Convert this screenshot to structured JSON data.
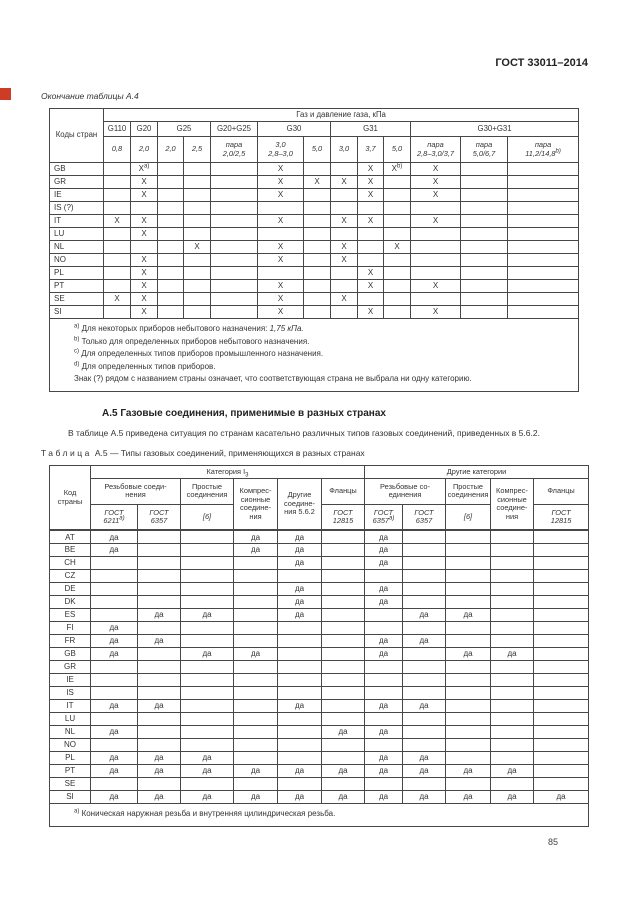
{
  "page": {
    "header_right": "ГОСТ 33011–2014",
    "page_number": "85",
    "marker_color": "#ce3c28"
  },
  "table_a4": {
    "caption": "Окончание таблицы А.4",
    "header": {
      "country_col": "Коды стран",
      "gas_title": "Газ и давление газа, кПа",
      "groups": [
        {
          "label": "G110",
          "span": 1
        },
        {
          "label": "G20",
          "span": 1
        },
        {
          "label": "G25",
          "span": 2
        },
        {
          "label": "G20+G25",
          "span": 1
        },
        {
          "label": "G30",
          "span": 2
        },
        {
          "label": "G31",
          "span": 3
        },
        {
          "label": "G30+G31",
          "span": 3
        }
      ],
      "pressures": [
        "0,8",
        "2,0",
        "2,0",
        "2,5",
        "пара\n2,0/2,5",
        "3,0\n2,8–3,0",
        "5,0",
        "3,0",
        "3,7",
        "5,0",
        "пара\n2,8–3,0/3,7",
        "пара\n5,0/6,7",
        "пара\n11,2/14,8^b)"
      ]
    },
    "rows": [
      {
        "country": "GB",
        "cells": [
          "",
          "X^a)",
          "",
          "",
          "",
          "X",
          "",
          "",
          "X",
          "X^b)",
          "X",
          "",
          ""
        ]
      },
      {
        "country": "GR",
        "cells": [
          "",
          "X",
          "",
          "",
          "",
          "X",
          "X",
          "X",
          "X",
          "",
          "X",
          "",
          ""
        ]
      },
      {
        "country": "IE",
        "cells": [
          "",
          "X",
          "",
          "",
          "",
          "X",
          "",
          "",
          "X",
          "",
          "X",
          "",
          ""
        ]
      },
      {
        "country": "IS (?)",
        "cells": [
          "",
          "",
          "",
          "",
          "",
          "",
          "",
          "",
          "",
          "",
          "",
          "",
          ""
        ]
      },
      {
        "country": "IT",
        "cells": [
          "X",
          "X",
          "",
          "",
          "",
          "X",
          "",
          "X",
          "X",
          "",
          "X",
          "",
          ""
        ]
      },
      {
        "country": "LU",
        "cells": [
          "",
          "X",
          "",
          "",
          "",
          "",
          "",
          "",
          "",
          "",
          "",
          "",
          ""
        ]
      },
      {
        "country": "NL",
        "cells": [
          "",
          "",
          "",
          "X",
          "",
          "X",
          "",
          "X",
          "",
          "X",
          "",
          "",
          ""
        ]
      },
      {
        "country": "NO",
        "cells": [
          "",
          "X",
          "",
          "",
          "",
          "X",
          "",
          "X",
          "",
          "",
          "",
          "",
          ""
        ]
      },
      {
        "country": "PL",
        "cells": [
          "",
          "X",
          "",
          "",
          "",
          "",
          "",
          "",
          "X",
          "",
          "",
          "",
          ""
        ]
      },
      {
        "country": "PT",
        "cells": [
          "",
          "X",
          "",
          "",
          "",
          "X",
          "",
          "",
          "X",
          "",
          "X",
          "",
          ""
        ]
      },
      {
        "country": "SE",
        "cells": [
          "X",
          "X",
          "",
          "",
          "",
          "X",
          "",
          "X",
          "",
          "",
          "",
          "",
          ""
        ]
      },
      {
        "country": "SI",
        "cells": [
          "",
          "X",
          "",
          "",
          "",
          "X",
          "",
          "",
          "X",
          "",
          "X",
          "",
          ""
        ]
      }
    ],
    "footnotes": [
      {
        "sup": "a)",
        "text": "Для некоторых приборов небытового назначения: ",
        "em": "1,75 кПа."
      },
      {
        "sup": "b)",
        "text": "Только для определенных приборов небытового назначения.",
        "em": ""
      },
      {
        "sup": "c)",
        "text": "Для определенных типов приборов промышленного назначения.",
        "em": ""
      },
      {
        "sup": "d)",
        "text": "Для определенных типов приборов.",
        "em": ""
      },
      {
        "sup": "",
        "text": "Знак (?) рядом с названием страны означает, что соответствующая страна не выбрала ни одну категорию.",
        "em": ""
      }
    ]
  },
  "section_a5": {
    "heading": "А.5 Газовые соединения, применимые в разных странах",
    "paragraph": "В таблице А.5 приведена ситуация по странам касательно различных типов газовых соединений, приведенных в 5.6.2."
  },
  "table_a5": {
    "caption_label": "Таблица",
    "caption_text": "А.5 — Типы газовых соединений, применяющихся в разных странах",
    "header": {
      "country_col": "Код\nстраны",
      "cat_label": "Категория I",
      "cat_sub": "3",
      "other_label": "Другие категории",
      "row2": [
        {
          "label": "Резьбовые соеди-\nнения",
          "span": 2,
          "rowspan": 1
        },
        {
          "label": "Простые\nсоединения",
          "span": 1,
          "rowspan": 1
        },
        {
          "label": "Компрес-\nсионные\nсоедине-\nния",
          "span": 1,
          "rowspan": 2
        },
        {
          "label": "Другие\nсоедине-\nния 5.6.2",
          "span": 1,
          "rowspan": 2
        },
        {
          "label": "Фланцы",
          "span": 1,
          "rowspan": 1
        },
        {
          "label": "Резьбовые со-\nединения",
          "span": 2,
          "rowspan": 1
        },
        {
          "label": "Простые\nсоединения",
          "span": 1,
          "rowspan": 1
        },
        {
          "label": "Компрес-\nсионные\nсоедине-\nния",
          "span": 1,
          "rowspan": 2
        },
        {
          "label": "Фланцы",
          "span": 1,
          "rowspan": 1
        }
      ],
      "row3": [
        "ГОСТ\n6211^a)",
        "ГОСТ\n6357",
        "[6]",
        "ГОСТ\n12815",
        "ГОСТ\n6357^a)",
        "ГОСТ\n6357",
        "[6]",
        "ГОСТ\n12815"
      ]
    },
    "rows": [
      {
        "country": "AT",
        "cells": [
          "да",
          "",
          "",
          "да",
          "да",
          "",
          "да",
          "",
          "",
          "",
          ""
        ]
      },
      {
        "country": "BE",
        "cells": [
          "да",
          "",
          "",
          "да",
          "да",
          "",
          "да",
          "",
          "",
          "",
          ""
        ]
      },
      {
        "country": "CH",
        "cells": [
          "",
          "",
          "",
          "",
          "да",
          "",
          "да",
          "",
          "",
          "",
          ""
        ]
      },
      {
        "country": "CZ",
        "cells": [
          "",
          "",
          "",
          "",
          "",
          "",
          "",
          "",
          "",
          "",
          ""
        ]
      },
      {
        "country": "DE",
        "cells": [
          "",
          "",
          "",
          "",
          "да",
          "",
          "да",
          "",
          "",
          "",
          ""
        ]
      },
      {
        "country": "DK",
        "cells": [
          "",
          "",
          "",
          "",
          "да",
          "",
          "да",
          "",
          "",
          "",
          ""
        ]
      },
      {
        "country": "ES",
        "cells": [
          "",
          "да",
          "да",
          "",
          "да",
          "",
          "",
          "да",
          "да",
          "",
          ""
        ]
      },
      {
        "country": "FI",
        "cells": [
          "да",
          "",
          "",
          "",
          "",
          "",
          "",
          "",
          "",
          "",
          ""
        ]
      },
      {
        "country": "FR",
        "cells": [
          "да",
          "да",
          "",
          "",
          "",
          "",
          "да",
          "да",
          "",
          "",
          ""
        ]
      },
      {
        "country": "GB",
        "cells": [
          "да",
          "",
          "да",
          "да",
          "",
          "",
          "да",
          "",
          "да",
          "да",
          ""
        ]
      },
      {
        "country": "GR",
        "cells": [
          "",
          "",
          "",
          "",
          "",
          "",
          "",
          "",
          "",
          "",
          ""
        ]
      },
      {
        "country": "IE",
        "cells": [
          "",
          "",
          "",
          "",
          "",
          "",
          "",
          "",
          "",
          "",
          ""
        ]
      },
      {
        "country": "IS",
        "cells": [
          "",
          "",
          "",
          "",
          "",
          "",
          "",
          "",
          "",
          "",
          ""
        ]
      },
      {
        "country": "IT",
        "cells": [
          "да",
          "да",
          "",
          "",
          "да",
          "",
          "да",
          "да",
          "",
          "",
          ""
        ]
      },
      {
        "country": "LU",
        "cells": [
          "",
          "",
          "",
          "",
          "",
          "",
          "",
          "",
          "",
          "",
          ""
        ]
      },
      {
        "country": "NL",
        "cells": [
          "да",
          "",
          "",
          "",
          "",
          "да",
          "да",
          "",
          "",
          "",
          ""
        ]
      },
      {
        "country": "NO",
        "cells": [
          "",
          "",
          "",
          "",
          "",
          "",
          "",
          "",
          "",
          "",
          ""
        ]
      },
      {
        "country": "PL",
        "cells": [
          "да",
          "да",
          "да",
          "",
          "",
          "",
          "да",
          "да",
          "",
          "",
          ""
        ]
      },
      {
        "country": "PT",
        "cells": [
          "да",
          "да",
          "да",
          "да",
          "да",
          "да",
          "да",
          "да",
          "да",
          "да",
          ""
        ]
      },
      {
        "country": "SE",
        "cells": [
          "",
          "",
          "",
          "",
          "",
          "",
          "",
          "",
          "",
          "",
          ""
        ]
      },
      {
        "country": "SI",
        "cells": [
          "да",
          "да",
          "да",
          "да",
          "да",
          "да",
          "да",
          "да",
          "да",
          "да",
          "да"
        ]
      }
    ],
    "footnotes": [
      {
        "sup": "a)",
        "text": "Коническая наружная резьба и внутренняя цилиндрическая резьба.",
        "em": ""
      }
    ]
  }
}
